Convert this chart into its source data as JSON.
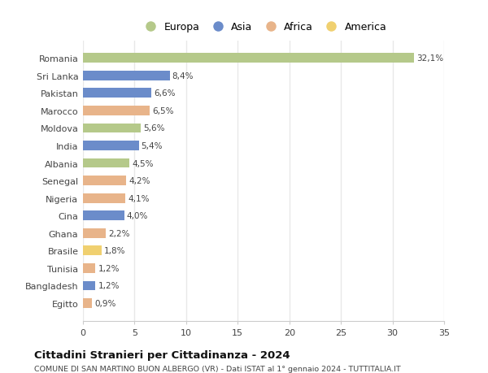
{
  "countries": [
    "Romania",
    "Sri Lanka",
    "Pakistan",
    "Marocco",
    "Moldova",
    "India",
    "Albania",
    "Senegal",
    "Nigeria",
    "Cina",
    "Ghana",
    "Brasile",
    "Tunisia",
    "Bangladesh",
    "Egitto"
  ],
  "values": [
    32.1,
    8.4,
    6.6,
    6.5,
    5.6,
    5.4,
    4.5,
    4.2,
    4.1,
    4.0,
    2.2,
    1.8,
    1.2,
    1.2,
    0.9
  ],
  "labels": [
    "32,1%",
    "8,4%",
    "6,6%",
    "6,5%",
    "5,6%",
    "5,4%",
    "4,5%",
    "4,2%",
    "4,1%",
    "4,0%",
    "2,2%",
    "1,8%",
    "1,2%",
    "1,2%",
    "0,9%"
  ],
  "colors": [
    "#b5c98a",
    "#6b8cca",
    "#6b8cca",
    "#e8b48a",
    "#b5c98a",
    "#6b8cca",
    "#b5c98a",
    "#e8b48a",
    "#e8b48a",
    "#6b8cca",
    "#e8b48a",
    "#f0d070",
    "#e8b48a",
    "#6b8cca",
    "#e8b48a"
  ],
  "legend_labels": [
    "Europa",
    "Asia",
    "Africa",
    "America"
  ],
  "legend_colors": [
    "#b5c98a",
    "#6b8cca",
    "#e8b48a",
    "#f0d070"
  ],
  "title": "Cittadini Stranieri per Cittadinanza - 2024",
  "subtitle": "COMUNE DI SAN MARTINO BUON ALBERGO (VR) - Dati ISTAT al 1° gennaio 2024 - TUTTITALIA.IT",
  "xlim": [
    0,
    35
  ],
  "xticks": [
    0,
    5,
    10,
    15,
    20,
    25,
    30,
    35
  ],
  "background_color": "#ffffff",
  "grid_color": "#e8e8e8"
}
